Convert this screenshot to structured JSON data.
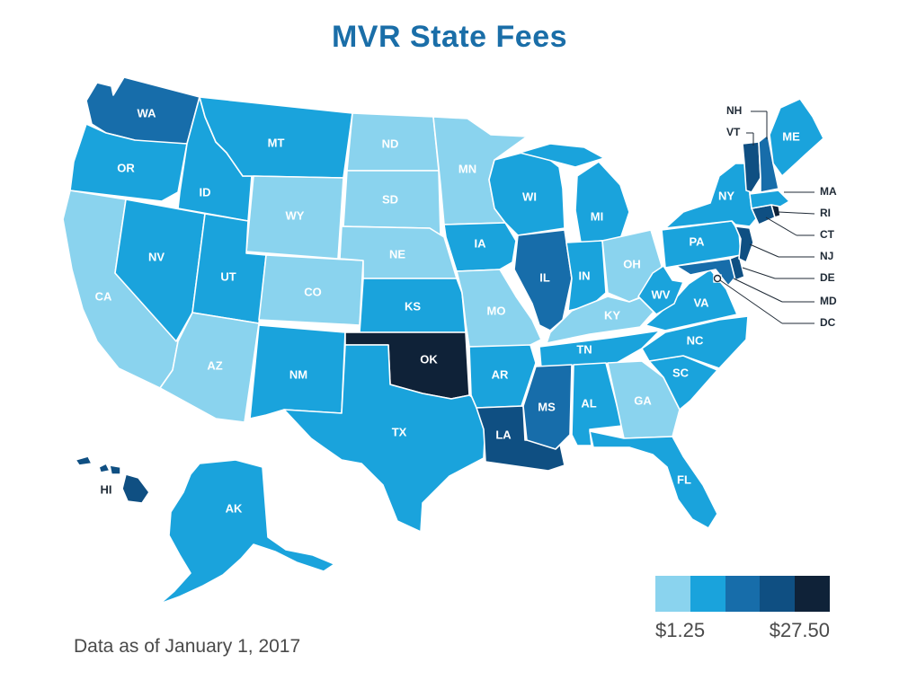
{
  "title": "MVR State Fees",
  "footnote": "Data as of January 1, 2017",
  "colors": {
    "tier1": "#8ad3ee",
    "tier2": "#1aa3dc",
    "tier3": "#176daa",
    "tier4": "#0f4f82",
    "tier5": "#0f2238",
    "label_dark": "#1f2a36"
  },
  "legend": {
    "min_label": "$1.25",
    "max_label": "$27.50",
    "tiers": [
      "tier1",
      "tier2",
      "tier3",
      "tier4",
      "tier5"
    ]
  },
  "states": {
    "WA": {
      "label": "WA",
      "tier": 3
    },
    "OR": {
      "label": "OR",
      "tier": 2
    },
    "CA": {
      "label": "CA",
      "tier": 1
    },
    "NV": {
      "label": "NV",
      "tier": 2
    },
    "ID": {
      "label": "ID",
      "tier": 2
    },
    "MT": {
      "label": "MT",
      "tier": 2
    },
    "WY": {
      "label": "WY",
      "tier": 1
    },
    "UT": {
      "label": "UT",
      "tier": 2
    },
    "AZ": {
      "label": "AZ",
      "tier": 1
    },
    "CO": {
      "label": "CO",
      "tier": 1
    },
    "NM": {
      "label": "NM",
      "tier": 2
    },
    "ND": {
      "label": "ND",
      "tier": 1
    },
    "SD": {
      "label": "SD",
      "tier": 1
    },
    "NE": {
      "label": "NE",
      "tier": 1
    },
    "KS": {
      "label": "KS",
      "tier": 2
    },
    "OK": {
      "label": "OK",
      "tier": 5
    },
    "TX": {
      "label": "TX",
      "tier": 2
    },
    "MN": {
      "label": "MN",
      "tier": 1
    },
    "IA": {
      "label": "IA",
      "tier": 2
    },
    "MO": {
      "label": "MO",
      "tier": 1
    },
    "AR": {
      "label": "AR",
      "tier": 2
    },
    "LA": {
      "label": "LA",
      "tier": 4
    },
    "WI": {
      "label": "WI",
      "tier": 2
    },
    "IL": {
      "label": "IL",
      "tier": 3
    },
    "MI": {
      "label": "MI",
      "tier": 2
    },
    "IN": {
      "label": "IN",
      "tier": 2
    },
    "OH": {
      "label": "OH",
      "tier": 1
    },
    "KY": {
      "label": "KY",
      "tier": 1
    },
    "TN": {
      "label": "TN",
      "tier": 2
    },
    "MS": {
      "label": "MS",
      "tier": 3
    },
    "AL": {
      "label": "AL",
      "tier": 2
    },
    "GA": {
      "label": "GA",
      "tier": 1
    },
    "FL": {
      "label": "FL",
      "tier": 2
    },
    "SC": {
      "label": "SC",
      "tier": 2
    },
    "NC": {
      "label": "NC",
      "tier": 2
    },
    "VA": {
      "label": "VA",
      "tier": 2
    },
    "WV": {
      "label": "WV",
      "tier": 2
    },
    "PA": {
      "label": "PA",
      "tier": 2
    },
    "NY": {
      "label": "NY",
      "tier": 2
    },
    "ME": {
      "label": "ME",
      "tier": 2
    },
    "AK": {
      "label": "AK",
      "tier": 2
    },
    "HI": {
      "label": "HI",
      "tier": 4
    },
    "VT": {
      "label": "VT",
      "tier": 4
    },
    "NH": {
      "label": "NH",
      "tier": 3
    },
    "MA": {
      "label": "MA",
      "tier": 2
    },
    "RI": {
      "label": "RI",
      "tier": 5
    },
    "CT": {
      "label": "CT",
      "tier": 4
    },
    "NJ": {
      "label": "NJ",
      "tier": 4
    },
    "DE": {
      "label": "DE",
      "tier": 4
    },
    "MD": {
      "label": "MD",
      "tier": 3
    },
    "DC": {
      "label": "DC",
      "tier": 1
    }
  }
}
